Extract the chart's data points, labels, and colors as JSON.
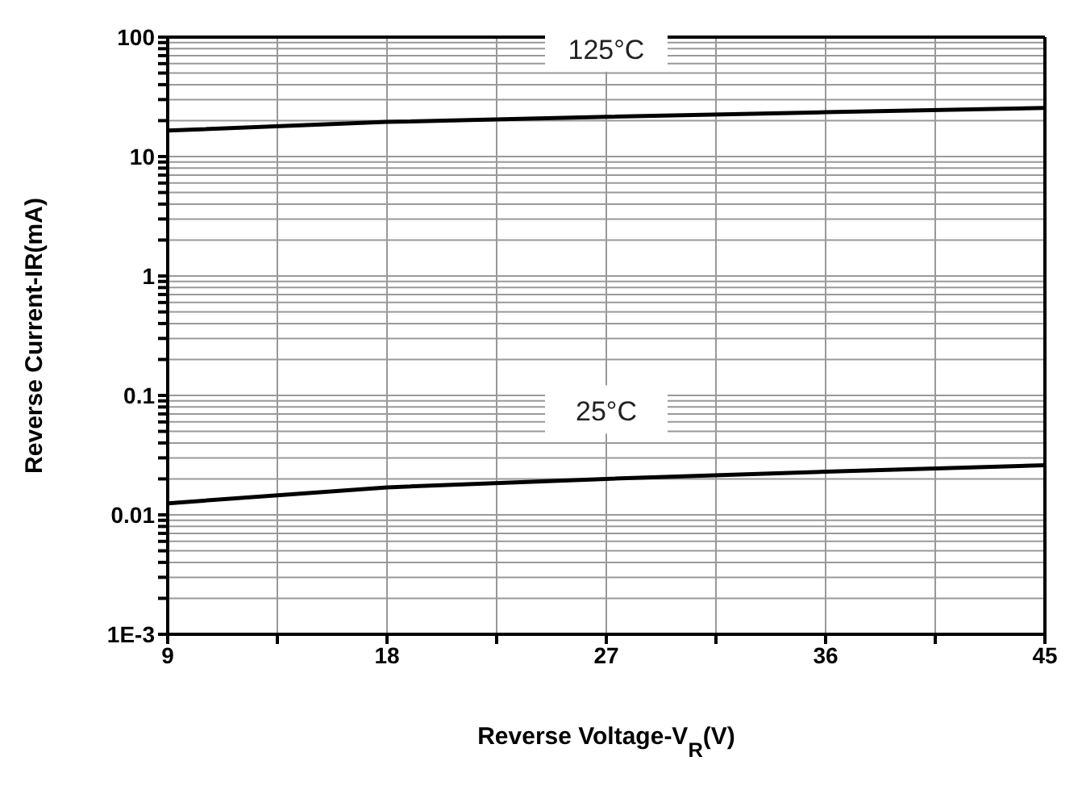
{
  "chart_data": {
    "type": "line",
    "xlabel": "Reverse Voltage-V$_{R}$(V)",
    "ylabel": "Reverse Current-IR(mA)",
    "log": "y",
    "grid": true,
    "legend": false,
    "marker": "none",
    "line_style": "solid",
    "xlim": [
      9,
      45
    ],
    "xticks": [
      9,
      {
        "value": 13.5,
        "label": null
      },
      18,
      {
        "value": 22.5,
        "label": null
      },
      27,
      {
        "value": 31.5,
        "label": null
      },
      36,
      {
        "value": 40.5,
        "label": null
      },
      45
    ],
    "ylim": [
      0.001,
      100
    ],
    "yticks": [
      {
        "value": 0.001,
        "label": "1E-3"
      },
      {
        "value": 0.002,
        "label": null
      },
      {
        "value": 0.003,
        "label": null
      },
      {
        "value": 0.004,
        "label": null
      },
      {
        "value": 0.005,
        "label": null
      },
      {
        "value": 0.006,
        "label": null
      },
      {
        "value": 0.007,
        "label": null
      },
      {
        "value": 0.008,
        "label": null
      },
      {
        "value": 0.009,
        "label": null
      },
      0.01,
      {
        "value": 0.02,
        "label": null
      },
      {
        "value": 0.03,
        "label": null
      },
      {
        "value": 0.04,
        "label": null
      },
      {
        "value": 0.05,
        "label": null
      },
      {
        "value": 0.06,
        "label": null
      },
      {
        "value": 0.07,
        "label": null
      },
      {
        "value": 0.08,
        "label": null
      },
      {
        "value": 0.09,
        "label": null
      },
      0.1,
      {
        "value": 0.2,
        "label": null
      },
      {
        "value": 0.3,
        "label": null
      },
      {
        "value": 0.4,
        "label": null
      },
      {
        "value": 0.5,
        "label": null
      },
      {
        "value": 0.6,
        "label": null
      },
      {
        "value": 0.7,
        "label": null
      },
      {
        "value": 0.8,
        "label": null
      },
      {
        "value": 0.9,
        "label": null
      },
      1,
      {
        "value": 2,
        "label": null
      },
      {
        "value": 3,
        "label": null
      },
      {
        "value": 4,
        "label": null
      },
      {
        "value": 5,
        "label": null
      },
      {
        "value": 6,
        "label": null
      },
      {
        "value": 7,
        "label": null
      },
      {
        "value": 8,
        "label": null
      },
      {
        "value": 9,
        "label": null
      },
      10,
      {
        "value": 20,
        "label": null
      },
      {
        "value": 30,
        "label": null
      },
      {
        "value": 40,
        "label": null
      },
      {
        "value": 50,
        "label": null
      },
      {
        "value": 60,
        "label": null
      },
      {
        "value": 70,
        "label": null
      },
      {
        "value": 80,
        "label": null
      },
      {
        "value": 90,
        "label": null
      },
      100
    ],
    "x": [
      9,
      18,
      27,
      36,
      45
    ],
    "series": [
      {
        "color": "#000000",
        "values": [
          16.5,
          19.5,
          21.5,
          23.5,
          25.5
        ]
      },
      {
        "color": "#000000",
        "values": [
          0.0125,
          0.017,
          0.02,
          0.023,
          0.026
        ]
      }
    ],
    "annotations": [
      "125°C",
      "25°C"
    ]
  }
}
